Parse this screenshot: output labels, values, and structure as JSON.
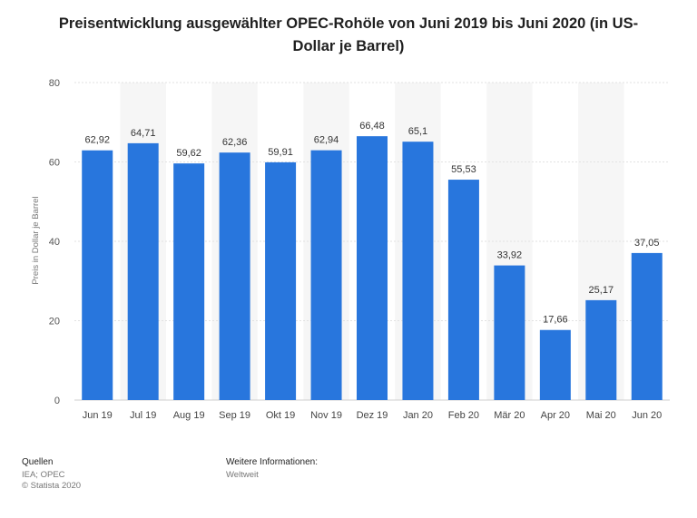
{
  "chart_data": {
    "type": "bar",
    "title": "Preisentwicklung ausgewählter OPEC-Rohöle von Juni 2019 bis Juni 2020 (in US-Dollar je Barrel)",
    "title_line1": "Preisentwicklung ausgewählter OPEC-Rohöle von Juni 2019 bis Juni 2020 (in US-",
    "title_line2": "Dollar je Barrel)",
    "xlabel": "",
    "ylabel": "Preis in Dollar je Barrel",
    "ylim": [
      0,
      80
    ],
    "yticks": [
      0,
      20,
      40,
      60,
      80
    ],
    "grid": true,
    "categories": [
      "Jun 19",
      "Jul 19",
      "Aug 19",
      "Sep 19",
      "Okt 19",
      "Nov 19",
      "Dez 19",
      "Jan 20",
      "Feb 20",
      "Mär 20",
      "Apr 20",
      "Mai 20",
      "Jun 20"
    ],
    "values": [
      62.92,
      64.71,
      59.62,
      62.36,
      59.91,
      62.94,
      66.48,
      65.1,
      55.53,
      33.92,
      17.66,
      25.17,
      37.05
    ],
    "value_labels": [
      "62,92",
      "64,71",
      "59,62",
      "62,36",
      "59,91",
      "62,94",
      "66,48",
      "65,1",
      "55,53",
      "33,92",
      "17,66",
      "25,17",
      "37,05"
    ],
    "bar_color": "#2876dd"
  },
  "footer": {
    "sources_label": "Quellen",
    "sources_line1": "IEA; OPEC",
    "sources_line2": "© Statista 2020",
    "info_label": "Weitere Informationen:",
    "info_value": "Weltweit"
  }
}
